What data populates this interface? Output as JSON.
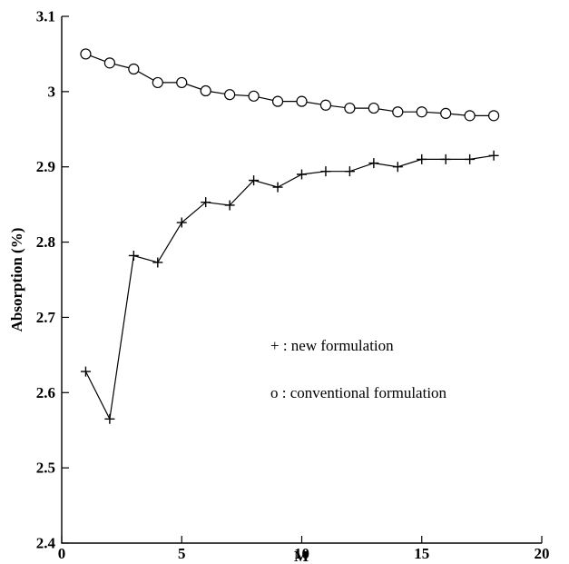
{
  "chart_data": {
    "type": "line",
    "xlabel": "M",
    "ylabel": "Absorption (%)",
    "xlim": [
      0,
      20
    ],
    "ylim": [
      2.4,
      3.1
    ],
    "xticks": [
      0,
      5,
      10,
      15,
      20
    ],
    "yticks": [
      2.4,
      2.5,
      2.6,
      2.7,
      2.8,
      2.9,
      3,
      3.1
    ],
    "xtick_labels": [
      "0",
      "5",
      "10",
      "15",
      "20"
    ],
    "ytick_labels": [
      "2.4",
      "2.5",
      "2.6",
      "2.7",
      "2.8",
      "2.9",
      "3",
      "3.1"
    ],
    "grid": false,
    "legend_position": "center-right",
    "x": [
      1,
      2,
      3,
      4,
      5,
      6,
      7,
      8,
      9,
      10,
      11,
      12,
      13,
      14,
      15,
      16,
      17,
      18
    ],
    "series": [
      {
        "name": "new formulation",
        "legend_label": "+ : new formulation",
        "marker": "plus",
        "values": [
          2.628,
          2.565,
          2.782,
          2.773,
          2.826,
          2.853,
          2.849,
          2.882,
          2.873,
          2.89,
          2.894,
          2.894,
          2.905,
          2.9,
          2.91,
          2.91,
          2.91,
          2.915
        ]
      },
      {
        "name": "conventional formulation",
        "legend_label": "o : conventional formulation",
        "marker": "circle",
        "values": [
          3.05,
          3.038,
          3.03,
          3.012,
          3.012,
          3.001,
          2.996,
          2.994,
          2.987,
          2.987,
          2.982,
          2.978,
          2.978,
          2.973,
          2.973,
          2.971,
          2.968,
          2.968
        ]
      }
    ]
  }
}
